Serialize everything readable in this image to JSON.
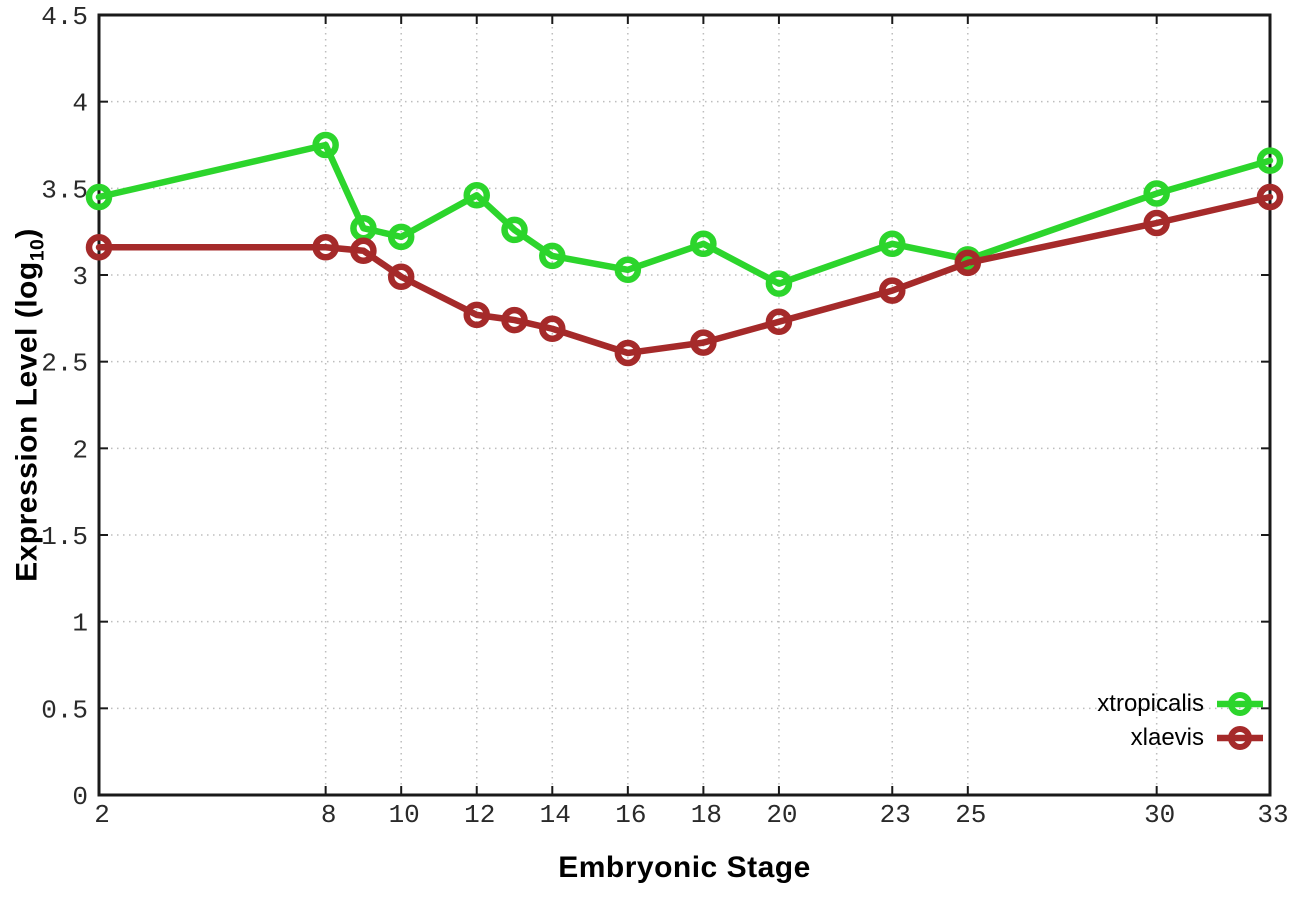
{
  "figure": {
    "background": "#ffffff"
  },
  "axes": {
    "x_label": "Embryonic Stage",
    "y_label": "Expression Level (log10)",
    "y_label_prefix": "Expression Level (log",
    "y_label_sub": "10",
    "y_label_suffix": ")",
    "x_tick_labels": [
      "2",
      "8",
      "10",
      "12",
      "14",
      "16",
      "18",
      "20",
      "23",
      "25",
      "30",
      "33"
    ],
    "x_tick_values": [
      2,
      8,
      10,
      12,
      14,
      16,
      18,
      20,
      23,
      25,
      30,
      33
    ],
    "y_tick_labels": [
      "0",
      "0.5",
      "1",
      "1.5",
      "2",
      "2.5",
      "3",
      "3.5",
      "4",
      "4.5"
    ],
    "y_tick_values": [
      0,
      0.5,
      1,
      1.5,
      2,
      2.5,
      3,
      3.5,
      4,
      4.5
    ],
    "x_range": [
      2,
      33
    ],
    "y_range": [
      0,
      4.5
    ]
  },
  "chart_data": {
    "type": "line",
    "title": "",
    "xlabel": "Embryonic Stage",
    "ylabel": "Expression Level (log10)",
    "xlim": [
      2,
      33
    ],
    "ylim": [
      0,
      4.5
    ],
    "grid": true,
    "legend_position": "bottom-right",
    "marker": "open-circle",
    "x": [
      2,
      8,
      9,
      10,
      12,
      13,
      14,
      16,
      18,
      20,
      23,
      25,
      30,
      33
    ],
    "series": [
      {
        "name": "xtropicalis",
        "color": "#2cd52c",
        "values": [
          3.45,
          3.75,
          3.27,
          3.22,
          3.46,
          3.26,
          3.11,
          3.03,
          3.18,
          2.95,
          3.18,
          3.09,
          3.47,
          3.66
        ]
      },
      {
        "name": "xlaevis",
        "color": "#a52a2a",
        "values": [
          3.16,
          3.16,
          3.14,
          2.99,
          2.77,
          2.74,
          2.69,
          2.55,
          2.61,
          2.73,
          2.91,
          3.07,
          3.3,
          3.45
        ]
      }
    ]
  },
  "legend": {
    "items": [
      {
        "label": "xtropicalis",
        "color": "#2cd52c"
      },
      {
        "label": "xlaevis",
        "color": "#a52a2a"
      }
    ]
  },
  "colors": {
    "grid": "#bdbdbd",
    "axis": "#1a1a1a",
    "tick_text": "#2a2a2a"
  }
}
